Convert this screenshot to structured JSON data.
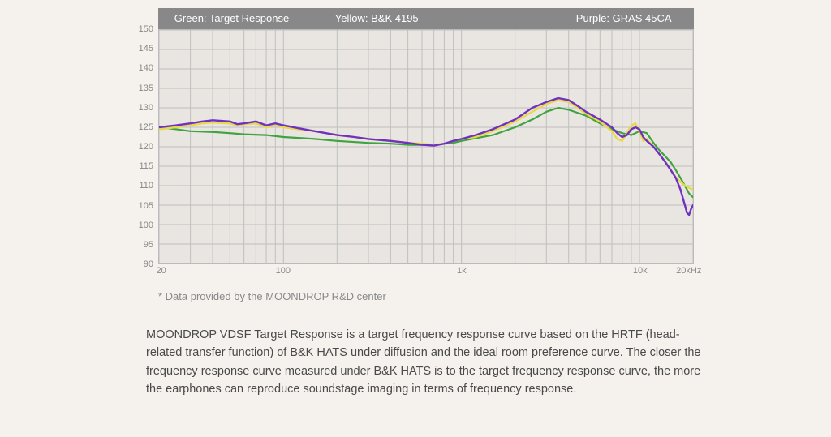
{
  "chart": {
    "type": "line",
    "legend_bar": {
      "background_color": "#888888",
      "text_color": "#ffffff",
      "font_size": 13,
      "items": [
        {
          "label": "Green: Target Response",
          "position_pct": 3
        },
        {
          "label": "Yellow: B&K 4195",
          "position_pct": 33
        },
        {
          "label": "Purple: GRAS 45CA",
          "position_pct": 78
        }
      ]
    },
    "plot_background": "#e9e6e1",
    "grid_color": "#bfbfbf",
    "axis_label_color": "#888888",
    "axis_font_size": 11,
    "ylim": [
      90,
      150
    ],
    "ytick_step": 5,
    "y_ticks": [
      90,
      95,
      100,
      105,
      110,
      115,
      120,
      125,
      130,
      135,
      140,
      145,
      150
    ],
    "xlim_hz": [
      20,
      20000
    ],
    "x_scale": "log",
    "x_major_ticks": [
      {
        "hz": 20,
        "label": "20"
      },
      {
        "hz": 100,
        "label": "100"
      },
      {
        "hz": 1000,
        "label": "1k"
      },
      {
        "hz": 10000,
        "label": "10k"
      },
      {
        "hz": 20000,
        "label": "20kHz"
      }
    ],
    "x_gridlines_hz": [
      20,
      30,
      40,
      50,
      60,
      70,
      80,
      90,
      100,
      200,
      300,
      400,
      500,
      600,
      700,
      800,
      900,
      1000,
      2000,
      3000,
      4000,
      5000,
      6000,
      7000,
      8000,
      9000,
      10000,
      20000
    ],
    "series": [
      {
        "name": "Target Response",
        "color": "#3fa33f",
        "line_width": 2.2,
        "points": [
          [
            20,
            125
          ],
          [
            25,
            124.5
          ],
          [
            30,
            124
          ],
          [
            40,
            123.8
          ],
          [
            50,
            123.5
          ],
          [
            60,
            123.2
          ],
          [
            80,
            123
          ],
          [
            100,
            122.5
          ],
          [
            150,
            122
          ],
          [
            200,
            121.5
          ],
          [
            300,
            121
          ],
          [
            400,
            120.8
          ],
          [
            500,
            120.5
          ],
          [
            700,
            120.5
          ],
          [
            900,
            121
          ],
          [
            1000,
            121.5
          ],
          [
            1500,
            123
          ],
          [
            2000,
            125
          ],
          [
            2500,
            127
          ],
          [
            3000,
            129
          ],
          [
            3500,
            130
          ],
          [
            4000,
            129.5
          ],
          [
            5000,
            128
          ],
          [
            6000,
            126
          ],
          [
            7000,
            124.5
          ],
          [
            8000,
            123.5
          ],
          [
            9000,
            123
          ],
          [
            10000,
            124
          ],
          [
            11000,
            123.5
          ],
          [
            12000,
            121
          ],
          [
            13000,
            119
          ],
          [
            14000,
            117.5
          ],
          [
            15000,
            116
          ],
          [
            16000,
            114
          ],
          [
            17000,
            112
          ],
          [
            18000,
            110
          ],
          [
            19000,
            108
          ],
          [
            20000,
            107
          ]
        ]
      },
      {
        "name": "B&K 4195",
        "color": "#e8d94a",
        "line_width": 2.4,
        "points": [
          [
            20,
            124.5
          ],
          [
            25,
            125
          ],
          [
            30,
            125.5
          ],
          [
            35,
            126
          ],
          [
            40,
            126.2
          ],
          [
            50,
            126
          ],
          [
            55,
            125.5
          ],
          [
            60,
            125.8
          ],
          [
            70,
            126
          ],
          [
            80,
            125
          ],
          [
            90,
            125.5
          ],
          [
            100,
            125
          ],
          [
            120,
            124.5
          ],
          [
            150,
            124
          ],
          [
            200,
            123
          ],
          [
            250,
            122.5
          ],
          [
            300,
            122
          ],
          [
            400,
            121.5
          ],
          [
            500,
            121
          ],
          [
            600,
            120.8
          ],
          [
            700,
            120.5
          ],
          [
            800,
            120.8
          ],
          [
            900,
            121.5
          ],
          [
            1000,
            122
          ],
          [
            1200,
            122.5
          ],
          [
            1500,
            124
          ],
          [
            2000,
            126.5
          ],
          [
            2500,
            129
          ],
          [
            3000,
            131
          ],
          [
            3500,
            132
          ],
          [
            4000,
            131.5
          ],
          [
            4500,
            130
          ],
          [
            5000,
            128.5
          ],
          [
            6000,
            126.5
          ],
          [
            7000,
            124
          ],
          [
            7500,
            122
          ],
          [
            8000,
            121.5
          ],
          [
            8500,
            123.5
          ],
          [
            9000,
            125.5
          ],
          [
            9500,
            126
          ],
          [
            10000,
            124
          ],
          [
            10500,
            121.5
          ],
          [
            11000,
            122
          ],
          [
            12000,
            120
          ],
          [
            13000,
            118
          ],
          [
            14000,
            116
          ],
          [
            15000,
            114
          ],
          [
            16000,
            112
          ],
          [
            17000,
            111
          ],
          [
            18000,
            110
          ],
          [
            19000,
            109.5
          ],
          [
            20000,
            109
          ]
        ]
      },
      {
        "name": "GRAS 45CA",
        "color": "#7030c0",
        "line_width": 2.4,
        "points": [
          [
            20,
            125
          ],
          [
            25,
            125.5
          ],
          [
            30,
            126
          ],
          [
            35,
            126.5
          ],
          [
            40,
            126.8
          ],
          [
            50,
            126.5
          ],
          [
            55,
            125.8
          ],
          [
            60,
            126
          ],
          [
            70,
            126.5
          ],
          [
            80,
            125.5
          ],
          [
            90,
            126
          ],
          [
            100,
            125.5
          ],
          [
            120,
            124.8
          ],
          [
            150,
            124
          ],
          [
            200,
            123
          ],
          [
            250,
            122.5
          ],
          [
            300,
            122
          ],
          [
            400,
            121.5
          ],
          [
            500,
            121
          ],
          [
            600,
            120.5
          ],
          [
            700,
            120.3
          ],
          [
            800,
            120.8
          ],
          [
            900,
            121.5
          ],
          [
            1000,
            122
          ],
          [
            1200,
            123
          ],
          [
            1500,
            124.5
          ],
          [
            2000,
            127
          ],
          [
            2500,
            130
          ],
          [
            3000,
            131.5
          ],
          [
            3500,
            132.5
          ],
          [
            4000,
            132
          ],
          [
            4500,
            130.5
          ],
          [
            5000,
            129
          ],
          [
            6000,
            127
          ],
          [
            7000,
            125
          ],
          [
            7500,
            123.5
          ],
          [
            8000,
            122.5
          ],
          [
            8500,
            123
          ],
          [
            9000,
            124.5
          ],
          [
            9500,
            125
          ],
          [
            10000,
            124.5
          ],
          [
            10500,
            122.5
          ],
          [
            11000,
            121.5
          ],
          [
            12000,
            120
          ],
          [
            13000,
            118
          ],
          [
            14000,
            116
          ],
          [
            15000,
            114
          ],
          [
            16000,
            112
          ],
          [
            17000,
            109
          ],
          [
            18000,
            105
          ],
          [
            18500,
            103
          ],
          [
            19000,
            102.5
          ],
          [
            19500,
            104
          ],
          [
            20000,
            105
          ]
        ]
      }
    ]
  },
  "footnote": "*  Data provided by the MOONDROP R&D center",
  "body_text": "MOONDROP VDSF Target Response is a target frequency response curve based on the HRTF (head-related transfer function) of B&K HATS under diffusion and the ideal room preference curve. The closer the frequency response curve measured under B&K HATS is to the target frequency response curve, the more the earphones can reproduce soundstage imaging in terms of frequency response.",
  "page": {
    "background_color": "#f5f2ed",
    "body_text_color": "#4a4a4a",
    "body_font_size": 14.5,
    "separator_color": "#cccccc"
  }
}
